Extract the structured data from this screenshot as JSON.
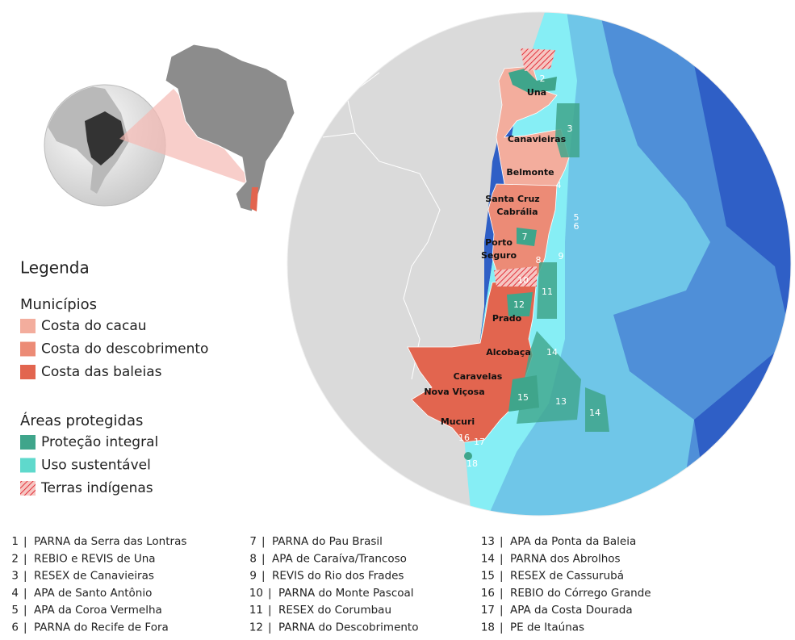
{
  "legend": {
    "title": "Legenda",
    "municipalities": {
      "title": "Municípios",
      "items": [
        {
          "label": "Costa do cacau",
          "color": "#f3ad9d"
        },
        {
          "label": "Costa do descobrimento",
          "color": "#ec8b76"
        },
        {
          "label": "Costa das baleias",
          "color": "#e2654f"
        }
      ]
    },
    "protected": {
      "title": "Áreas protegidas",
      "items": [
        {
          "label": "Proteção integral",
          "color": "#3fa58b"
        },
        {
          "label": "Uso sustentável",
          "color": "#5fd9cc"
        },
        {
          "label": "Terras indígenas",
          "color": "#e2303a"
        }
      ]
    }
  },
  "places": [
    {
      "lines": [
        "Una"
      ]
    },
    {
      "lines": [
        "Canavieiras"
      ]
    },
    {
      "lines": [
        "Belmonte"
      ]
    },
    {
      "lines": [
        "Santa Cruz",
        "Cabrália"
      ]
    },
    {
      "lines": [
        "Porto",
        "Seguro"
      ]
    },
    {
      "lines": [
        "Prado"
      ]
    },
    {
      "lines": [
        "Alcobaça"
      ]
    },
    {
      "lines": [
        "Caravelas"
      ]
    },
    {
      "lines": [
        "Nova Viçosa"
      ]
    },
    {
      "lines": [
        "Mucuri"
      ]
    }
  ],
  "separator": "|",
  "areas": [
    {
      "number": 1,
      "name": "PARNA da Serra das Lontras"
    },
    {
      "number": 2,
      "name": "REBIO e REVIS de Una"
    },
    {
      "number": 3,
      "name": "RESEX de Canavieiras"
    },
    {
      "number": 4,
      "name": "APA de Santo Antônio"
    },
    {
      "number": 5,
      "name": "APA da Coroa Vermelha"
    },
    {
      "number": 6,
      "name": "PARNA do Recife de Fora"
    },
    {
      "number": 7,
      "name": "PARNA do Pau Brasil"
    },
    {
      "number": 8,
      "name": "APA de Caraíva/Trancoso"
    },
    {
      "number": 9,
      "name": "REVIS do Rio dos Frades"
    },
    {
      "number": 10,
      "name": "PARNA do Monte Pascoal"
    },
    {
      "number": 11,
      "name": "RESEX do Corumbau"
    },
    {
      "number": 12,
      "name": "PARNA do Descobrimento"
    },
    {
      "number": 13,
      "name": "APA da Ponta da Baleia"
    },
    {
      "number": 14,
      "name": "PARNA dos Abrolhos"
    },
    {
      "number": 15,
      "name": "RESEX de Cassurubá"
    },
    {
      "number": 16,
      "name": "REBIO do Córrego Grande"
    },
    {
      "number": 17,
      "name": "APA da Costa Dourada"
    },
    {
      "number": 18,
      "name": "PE de Itaúnas"
    }
  ]
}
